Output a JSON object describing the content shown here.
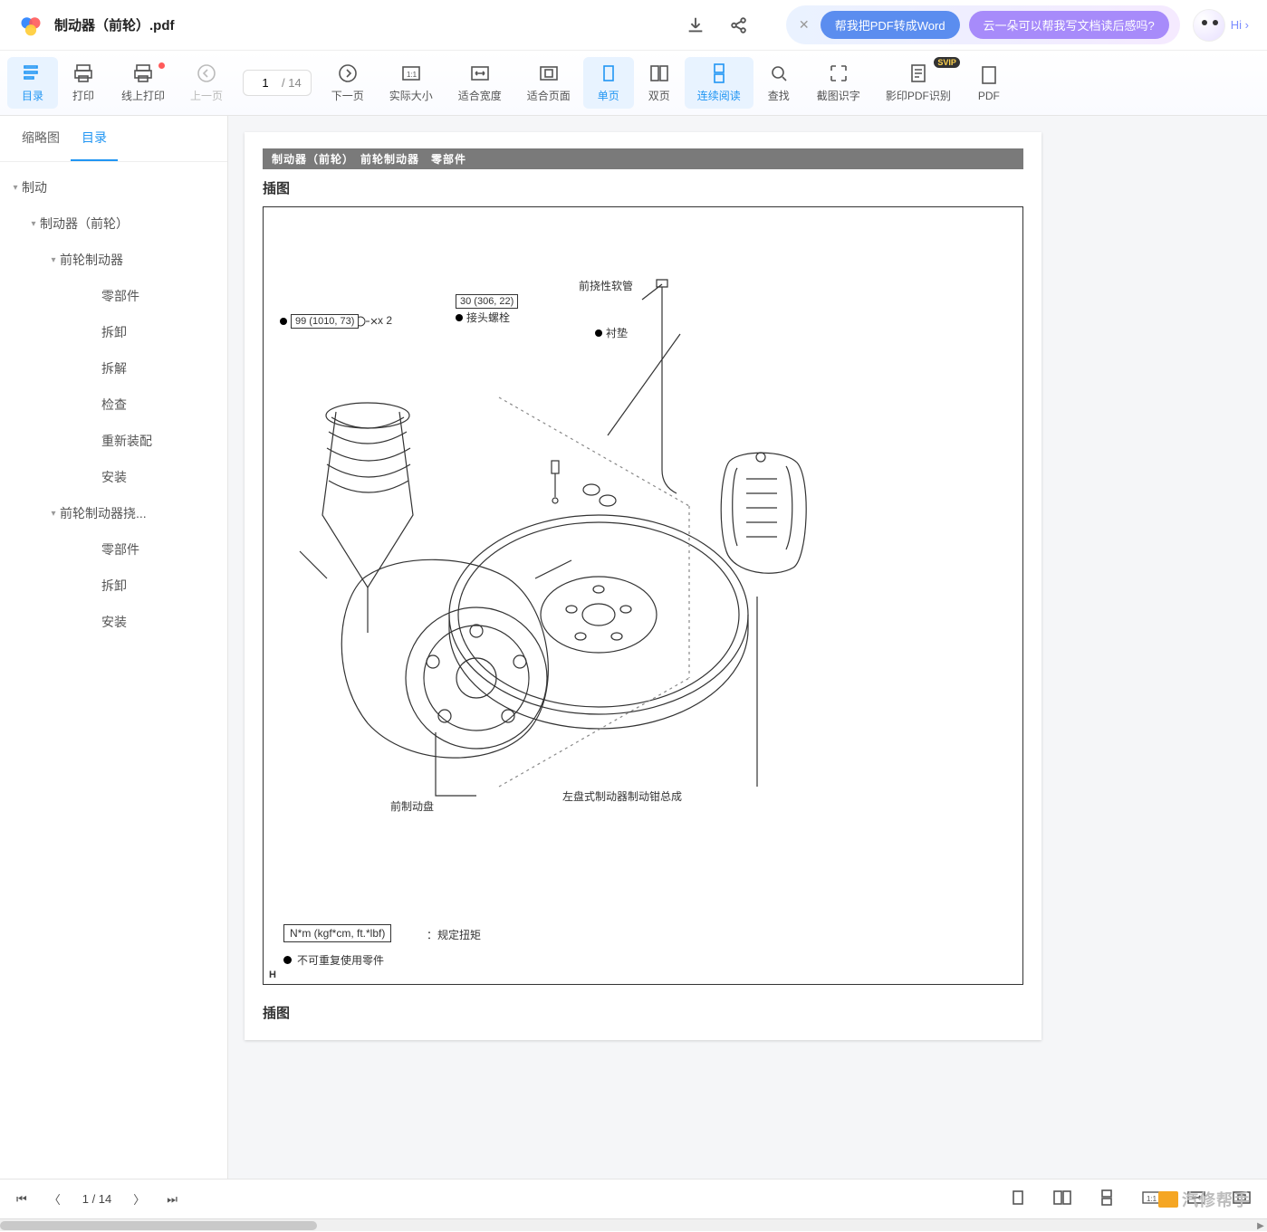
{
  "header": {
    "filename": "制动器（前轮）.pdf",
    "promo_pill_1": "帮我把PDF转成Word",
    "promo_pill_2": "云一朵可以帮我写文档读后感吗?",
    "hi_label": "Hi ›"
  },
  "toolbar": {
    "items": [
      {
        "id": "toc",
        "label": "目录",
        "active": true
      },
      {
        "id": "print",
        "label": "打印"
      },
      {
        "id": "print-online",
        "label": "线上打印",
        "dot": true
      },
      {
        "id": "prev",
        "label": "上一页",
        "disabled": true
      }
    ],
    "page_current": "1",
    "page_sep": "/ 14",
    "items2": [
      {
        "id": "next",
        "label": "下一页"
      },
      {
        "id": "actual",
        "label": "实际大小"
      },
      {
        "id": "fit-width",
        "label": "适合宽度"
      },
      {
        "id": "fit-page",
        "label": "适合页面"
      },
      {
        "id": "single",
        "label": "单页",
        "active": true
      },
      {
        "id": "double",
        "label": "双页"
      },
      {
        "id": "continuous",
        "label": "连续阅读",
        "active": true
      },
      {
        "id": "find",
        "label": "查找"
      },
      {
        "id": "ocr-snip",
        "label": "截图识字"
      },
      {
        "id": "ocr-pdf",
        "label": "影印PDF识别",
        "svip": "SVIP"
      },
      {
        "id": "pdf-extra",
        "label": "PDF"
      }
    ]
  },
  "side_tabs": {
    "thumb": "缩略图",
    "toc": "目录"
  },
  "outline": [
    {
      "lv": 0,
      "label": "制动",
      "exp": true
    },
    {
      "lv": 1,
      "label": "制动器（前轮）",
      "exp": true
    },
    {
      "lv": 2,
      "label": "前轮制动器",
      "exp": true
    },
    {
      "lv": 3,
      "label": "零部件"
    },
    {
      "lv": 3,
      "label": "拆卸"
    },
    {
      "lv": 3,
      "label": "拆解"
    },
    {
      "lv": 3,
      "label": "检查"
    },
    {
      "lv": 3,
      "label": "重新装配"
    },
    {
      "lv": 3,
      "label": "安装"
    },
    {
      "lv": 2,
      "label": "前轮制动器挠...",
      "exp": true
    },
    {
      "lv": 3,
      "label": "零部件"
    },
    {
      "lv": 3,
      "label": "拆卸"
    },
    {
      "lv": 3,
      "label": "安装"
    }
  ],
  "page": {
    "bar_text": "制动器（前轮）　前轮制动器　零部件",
    "heading1": "插图",
    "heading2": "插图",
    "torque_caption": "N*m (kgf*cm, ft.*lbf)",
    "torque_desc": "：规定扭矩",
    "non_reusable": "不可重复使用零件",
    "h_letter": "H",
    "callouts": {
      "tv1": "99 (1010, 73)",
      "x2": "x 2",
      "tv2": "30 (306, 22)",
      "joint_bolt": "接头螺栓",
      "flex_hose": "前挠性软管",
      "gasket": "衬垫",
      "caliper_asm": "左盘式制动器制动钳总成",
      "front_disc": "前制动盘"
    }
  },
  "bottom": {
    "page_ind_current": "1",
    "page_ind_total": "/ 14"
  },
  "brand_text": "汽修帮手",
  "colors": {
    "accent": "#2196f3",
    "bar_bg": "#7a7a7a",
    "viewer_bg": "#f5f6f8"
  }
}
